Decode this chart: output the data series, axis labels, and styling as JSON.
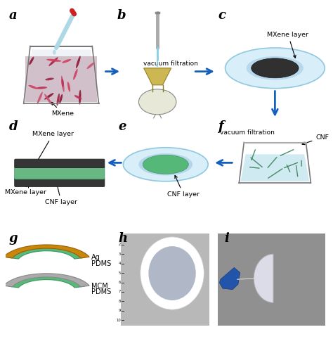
{
  "panel_labels": [
    "a",
    "b",
    "c",
    "d",
    "e",
    "f",
    "g",
    "h",
    "i"
  ],
  "panel_label_fontsize": 13,
  "background_color": "#ffffff",
  "colors": {
    "mxene_dark": "#2d2d2d",
    "cnf_green": "#5ab87a",
    "filter_blue": "#cde8f5",
    "ag_color": "#c8860a",
    "pdms_color": "#5ab87a",
    "mcm_gray": "#b0b0b0",
    "arrow_blue": "#1560bd"
  }
}
